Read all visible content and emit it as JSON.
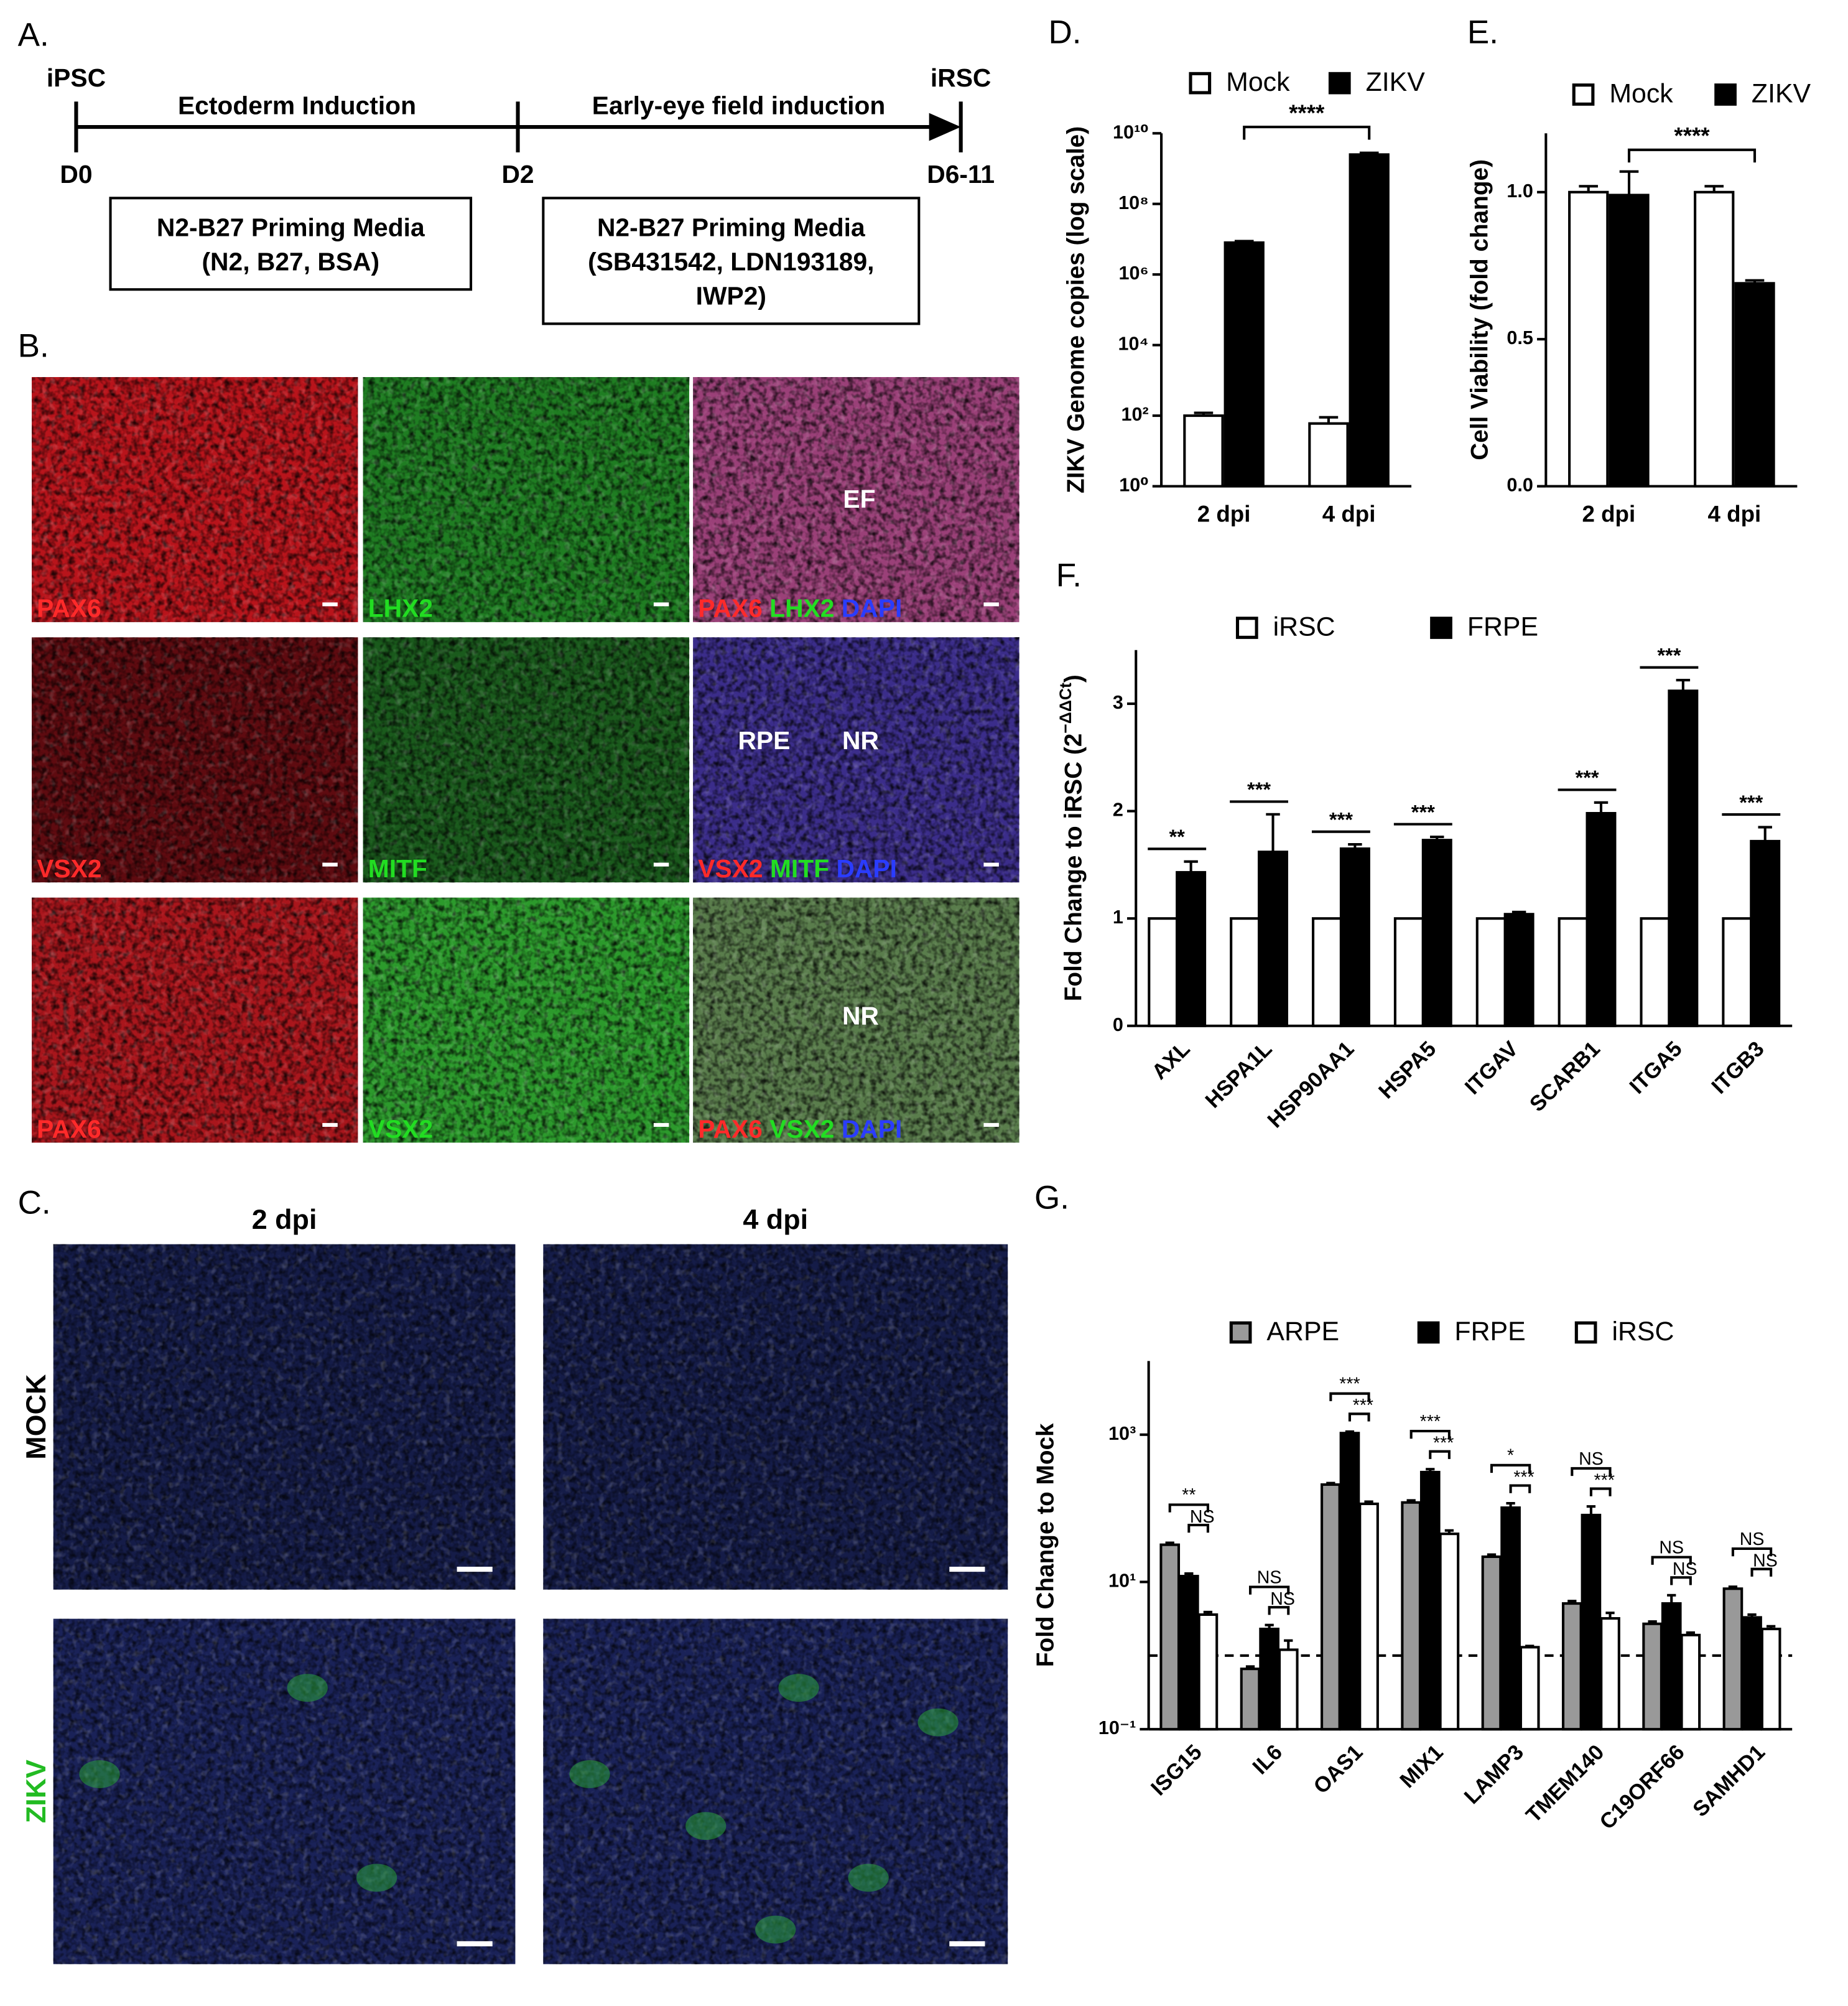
{
  "panel_a": {
    "label": "A.",
    "start": "iPSC",
    "end": "iRSC",
    "day0": "D0",
    "day2": "D2",
    "day_end": "D6-11",
    "stage1": "Ectoderm Induction",
    "stage2": "Early-eye field induction",
    "media1": [
      "N2-B27 Priming Media",
      "(N2, B27, BSA)"
    ],
    "media2": [
      "N2-B27 Priming Media",
      "(SB431542, LDN193189,",
      "IWP2)"
    ]
  },
  "panel_b": {
    "label": "B.",
    "rows": [
      {
        "channels": [
          "PAX6",
          "LHX2"
        ],
        "merge": [
          "PAX6",
          "LHX2",
          "DAPI"
        ],
        "regions": [
          "EF"
        ]
      },
      {
        "channels": [
          "VSX2",
          "MITF"
        ],
        "merge": [
          "VSX2",
          "MITF",
          "DAPI"
        ],
        "regions": [
          "RPE",
          "NR"
        ]
      },
      {
        "channels": [
          "PAX6",
          "VSX2"
        ],
        "merge": [
          "PAX6",
          "VSX2",
          "DAPI"
        ],
        "regions": [
          "NR"
        ]
      }
    ]
  },
  "panel_c": {
    "label": "C.",
    "columns": [
      "2 dpi",
      "4 dpi"
    ],
    "rows": [
      "MOCK",
      "ZIKV"
    ]
  },
  "chart_data": [
    {
      "type": "bar",
      "panel_label": "D.",
      "ylabel": "ZIKV Genome copies (log scale)",
      "log_scale": true,
      "categories": [
        "2 dpi",
        "4 dpi"
      ],
      "series": [
        {
          "name": "Mock",
          "color": "#ffffff",
          "values": [
            100,
            60
          ],
          "errors": [
            20,
            30
          ]
        },
        {
          "name": "ZIKV",
          "color": "#000000",
          "values": [
            8000000,
            2500000000
          ],
          "errors": [
            800000,
            300000000
          ]
        }
      ],
      "ylim": [
        1,
        10000000000
      ],
      "yticks": [
        {
          "value": 1,
          "label": "10⁰"
        },
        {
          "value": 100,
          "label": "10²"
        },
        {
          "value": 10000,
          "label": "10⁴"
        },
        {
          "value": 1000000,
          "label": "10⁶"
        },
        {
          "value": 100000000,
          "label": "10⁸"
        },
        {
          "value": 10000000000,
          "label": "10¹⁰"
        }
      ],
      "significance": "****"
    },
    {
      "type": "bar",
      "panel_label": "E.",
      "ylabel": "Cell Viability (fold change)",
      "log_scale": false,
      "categories": [
        "2 dpi",
        "4 dpi"
      ],
      "series": [
        {
          "name": "Mock",
          "color": "#ffffff",
          "values": [
            1.0,
            1.0
          ],
          "errors": [
            0.02,
            0.02
          ]
        },
        {
          "name": "ZIKV",
          "color": "#000000",
          "values": [
            0.99,
            0.69
          ],
          "errors": [
            0.08,
            0.01
          ]
        }
      ],
      "ylim": [
        0,
        1.2
      ],
      "yticks": [
        {
          "value": 0,
          "label": "0.0"
        },
        {
          "value": 0.5,
          "label": "0.5"
        },
        {
          "value": 1,
          "label": "1.0"
        }
      ],
      "significance": "****"
    },
    {
      "type": "bar",
      "panel_label": "F.",
      "ylabel": "Fold Change to iRSC (2",
      "ylabel_sup": "−ΔΔCt",
      "ylabel_end": ")",
      "log_scale": false,
      "categories": [
        "AXL",
        "HSPA1L",
        "HSP90AA1",
        "HSPA5",
        "ITGAV",
        "SCARB1",
        "ITGA5",
        "ITGB3"
      ],
      "series": [
        {
          "name": "iRSC",
          "color": "#ffffff",
          "values": [
            1,
            1,
            1,
            1,
            1,
            1,
            1,
            1
          ]
        },
        {
          "name": "FRPE",
          "color": "#000000",
          "values": [
            1.43,
            1.62,
            1.65,
            1.73,
            1.04,
            1.98,
            3.12,
            1.72
          ],
          "errors": [
            0.1,
            0.35,
            0.04,
            0.03,
            0.02,
            0.1,
            0.1,
            0.13
          ]
        }
      ],
      "ylim": [
        0,
        3.5
      ],
      "yticks": [
        0,
        1,
        2,
        3
      ],
      "significance": [
        "**",
        "***",
        "***",
        "***",
        null,
        "***",
        "***",
        "***"
      ]
    },
    {
      "type": "bar",
      "panel_label": "G.",
      "ylabel": "Fold Change to Mock",
      "log_scale": true,
      "categories": [
        "ISG15",
        "IL6",
        "OAS1",
        "MIX1",
        "LAMP3",
        "TMEM140",
        "C19ORF66",
        "SAMHD1"
      ],
      "series": [
        {
          "name": "ARPE",
          "color": "#999999",
          "values": [
            32,
            0.66,
            210,
            120,
            22,
            5.1,
            2.7,
            8.1
          ],
          "errors": [
            2,
            0.05,
            10,
            8,
            1.5,
            0.4,
            0.2,
            0.5
          ]
        },
        {
          "name": "FRPE",
          "color": "#000000",
          "values": [
            12,
            2.3,
            1050,
            310,
            102,
            81,
            5.1,
            3.3
          ],
          "errors": [
            1,
            0.3,
            50,
            30,
            15,
            25,
            1.5,
            0.3
          ]
        },
        {
          "name": "iRSC",
          "color": "#ffffff",
          "values": [
            3.6,
            1.2,
            115,
            45,
            1.3,
            3.2,
            1.9,
            2.3
          ],
          "errors": [
            0.3,
            0.4,
            8,
            5,
            0.05,
            0.6,
            0.15,
            0.2
          ]
        }
      ],
      "ylim": [
        0.1,
        10000
      ],
      "yticks": [
        {
          "value": 0.1,
          "label": "10⁻¹"
        },
        {
          "value": 10,
          "label": "10¹"
        },
        {
          "value": 1000,
          "label": "10³"
        }
      ],
      "reference_line": 1,
      "significance_outer": [
        "**",
        "NS",
        "***",
        "***",
        "*",
        "NS",
        "NS",
        "NS"
      ],
      "significance_inner": [
        "NS",
        "NS",
        "***",
        "***",
        "***",
        "***",
        "NS",
        "NS"
      ]
    }
  ]
}
